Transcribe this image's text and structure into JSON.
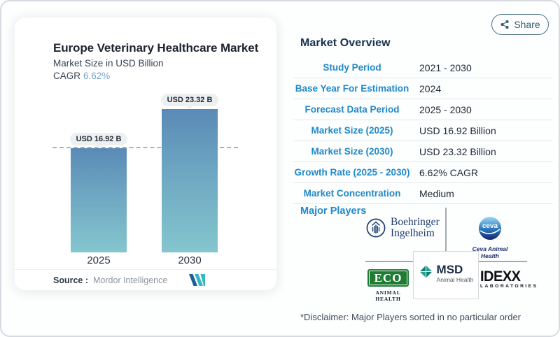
{
  "share_button": {
    "label": "Share"
  },
  "chart_card": {
    "title": "Europe Veterinary Healthcare Market",
    "subtitle": "Market Size in USD Billion",
    "cagr_label": "CAGR",
    "cagr_value": "6.62%",
    "source_label": "Source :",
    "source_name": "Mordor Intelligence"
  },
  "chart_data": {
    "type": "bar",
    "title": "Europe Veterinary Healthcare Market",
    "ylabel": "Market Size in USD Billion",
    "categories": [
      "2025",
      "2030"
    ],
    "values": [
      16.92,
      23.32
    ],
    "value_labels": [
      "USD 16.92 B",
      "USD 23.32 B"
    ],
    "unit": "USD Billion",
    "ylim": [
      0,
      26
    ],
    "grid": false,
    "reference_line_at": 16.92,
    "bar_color_top": "#5a8ab6",
    "bar_color_bottom": "#84c6ce"
  },
  "overview": {
    "heading": "Market Overview",
    "rows": [
      {
        "label": "Study Period",
        "value": "2021 - 2030"
      },
      {
        "label": "Base Year For Estimation",
        "value": "2024"
      },
      {
        "label": "Forecast Data Period",
        "value": "2025 - 2030"
      },
      {
        "label": "Market Size (2025)",
        "value": "USD 16.92 Billion"
      },
      {
        "label": "Market Size (2030)",
        "value": "USD 23.32 Billion"
      },
      {
        "label": "Growth Rate (2025 - 2030)",
        "value": "6.62% CAGR"
      },
      {
        "label": "Market Concentration",
        "value": "Medium"
      }
    ]
  },
  "players": {
    "heading": "Major Players",
    "boehringer": {
      "line1": "Boehringer",
      "line2": "Ingelheim"
    },
    "ceva": {
      "mark_text": "ceva",
      "caption": "Ceva Animal Health"
    },
    "eco": {
      "mark_text": "ECO",
      "caption": "ANIMAL HEALTH"
    },
    "msd": {
      "name": "MSD",
      "caption": "Animal Health"
    },
    "idexx": {
      "name": "IDEXX",
      "caption": "LABORATORIES"
    },
    "disclaimer": "*Disclaimer: Major Players sorted in no particular order"
  },
  "colors": {
    "accent_blue": "#2089c9",
    "heading_navy": "#17304e",
    "cagr_blue": "#76a5cd",
    "pill_bg": "#edf0f1",
    "mordor_navy": "#1f5c9b",
    "mordor_teal": "#35b8bf"
  }
}
